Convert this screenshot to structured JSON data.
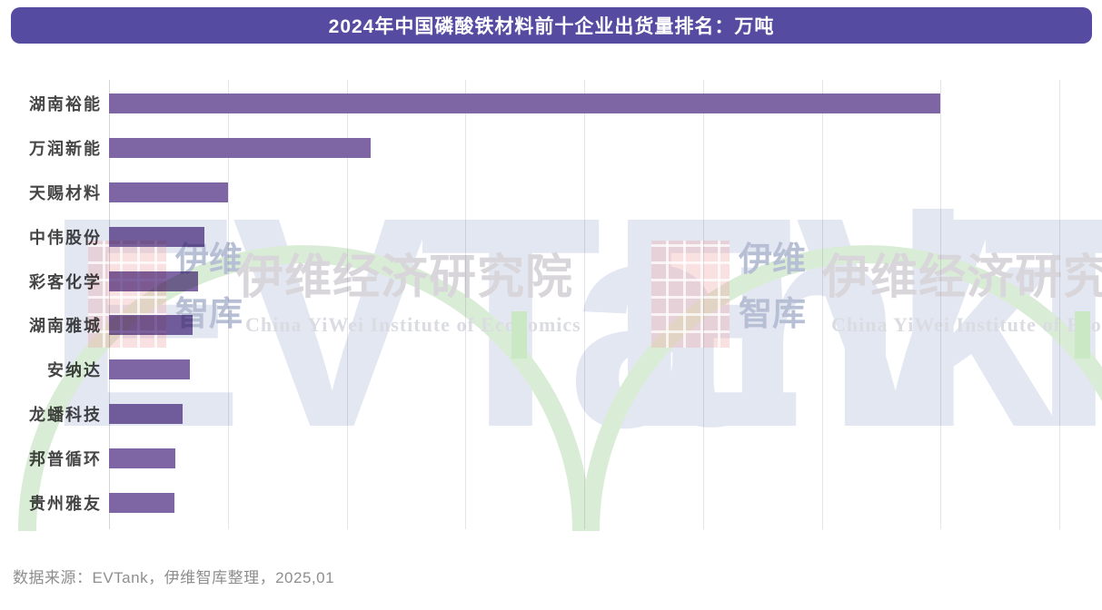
{
  "title": {
    "text": "2024年中国磷酸铁材料前十企业出货量排名：万吨",
    "bg_color": "#554CA2",
    "text_color": "#ffffff"
  },
  "chart_data": {
    "type": "bar",
    "orientation": "horizontal",
    "title": "2024年中国磷酸铁材料前十企业出货量排名：万吨",
    "unit": "万吨",
    "categories": [
      "湖南裕能",
      "万润新能",
      "天赐材料",
      "中伟股份",
      "彩客化学",
      "湖南雅城",
      "安纳达",
      "龙蟠科技",
      "邦普循环",
      "贵州雅友"
    ],
    "values": [
      70.0,
      22.0,
      10.0,
      8.0,
      7.5,
      7.0,
      6.8,
      6.2,
      5.6,
      5.5
    ],
    "xlabel": "",
    "ylabel": "",
    "xlim": [
      0,
      80
    ],
    "x_tick_interval": 10,
    "grid": "vertical-only",
    "tick_labels_shown": false,
    "value_labels_shown": false,
    "bar_color": "#7E65A3",
    "legend": "none"
  },
  "source_note": "数据来源：EVTank，伊维智库整理，2025,01",
  "watermark": {
    "logo_text": "EVTank",
    "cn_line1": "伊维",
    "cn_line2": "智库",
    "institute_cn": "伊维经济研究院",
    "institute_en": "China YiWei Institute of Economics",
    "arc_color": "#d9ecd5",
    "pink_color": "#f0a8a8",
    "letter_color": "#e3e7f2"
  }
}
